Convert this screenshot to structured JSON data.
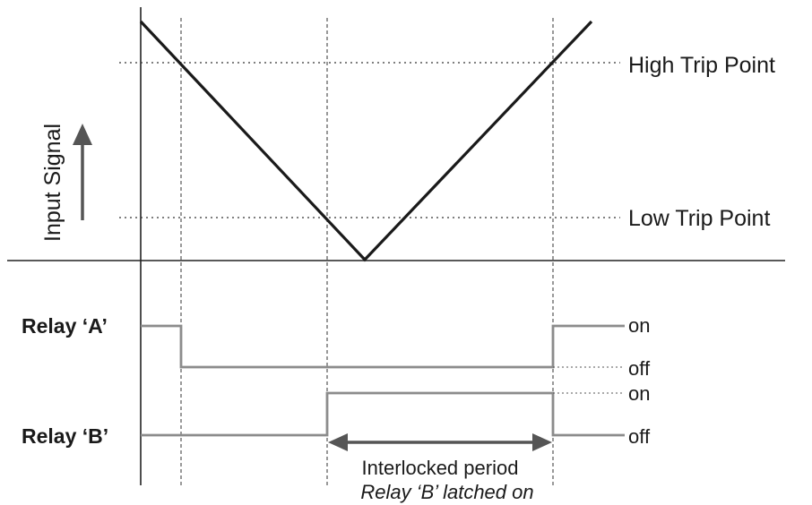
{
  "axis": {
    "ylabel": "Input Signal"
  },
  "trip_points": {
    "high": "High Trip Point",
    "low": "Low Trip Point"
  },
  "relays": {
    "a": {
      "label": "Relay ‘A’",
      "on": "on",
      "off": "off"
    },
    "b": {
      "label": "Relay ‘B’",
      "on": "on",
      "off": "off"
    }
  },
  "interlock": {
    "line1": "Interlocked period",
    "line2": "Relay ‘B’ latched on"
  },
  "colors": {
    "signal": "#1a1a1a",
    "relay_trace": "#8c8c8c",
    "arrow": "#555555",
    "guide": "#333333"
  }
}
